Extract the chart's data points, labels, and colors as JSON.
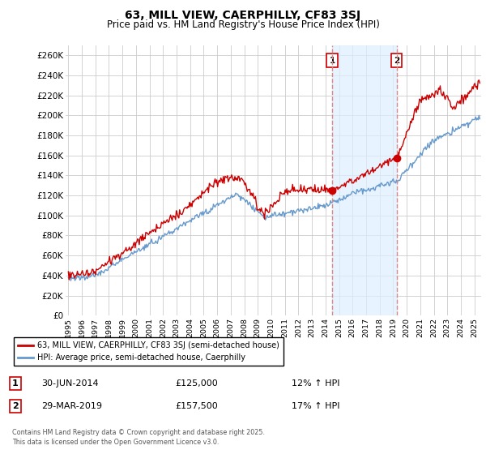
{
  "title": "63, MILL VIEW, CAERPHILLY, CF83 3SJ",
  "subtitle": "Price paid vs. HM Land Registry's House Price Index (HPI)",
  "ylabel_ticks": [
    "£0",
    "£20K",
    "£40K",
    "£60K",
    "£80K",
    "£100K",
    "£120K",
    "£140K",
    "£160K",
    "£180K",
    "£200K",
    "£220K",
    "£240K",
    "£260K"
  ],
  "ylim": [
    0,
    270000
  ],
  "xlim_start": 1994.8,
  "xlim_end": 2025.5,
  "marker1_date": 2014.5,
  "marker2_date": 2019.25,
  "marker1_price_paid": 125000,
  "marker2_price_paid": 157500,
  "marker1_label": "1",
  "marker2_label": "2",
  "legend_line1": "63, MILL VIEW, CAERPHILLY, CF83 3SJ (semi-detached house)",
  "legend_line2": "HPI: Average price, semi-detached house, Caerphilly",
  "table_row1": [
    "1",
    "30-JUN-2014",
    "£125,000",
    "12% ↑ HPI"
  ],
  "table_row2": [
    "2",
    "29-MAR-2019",
    "£157,500",
    "17% ↑ HPI"
  ],
  "footnote": "Contains HM Land Registry data © Crown copyright and database right 2025.\nThis data is licensed under the Open Government Licence v3.0.",
  "red_color": "#cc0000",
  "blue_color": "#6699cc",
  "background_color": "#ffffff",
  "grid_color": "#cccccc",
  "shade_color": "#ddeeff",
  "marker_dashed_color": "#dd8888"
}
